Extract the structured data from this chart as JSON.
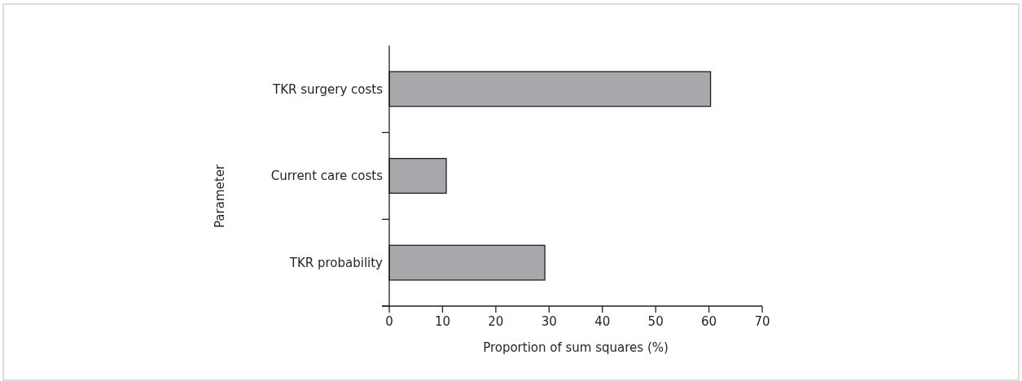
{
  "chart_data": {
    "type": "bar",
    "orientation": "horizontal",
    "xlabel": "Proportion of sum squares (%)",
    "ylabel": "Parameter",
    "categories": [
      "TKR surgery costs",
      "Current care costs",
      "TKR probability"
    ],
    "values": [
      60.3,
      10.7,
      29.2
    ],
    "color": "#a7a8ab",
    "xlim": [
      0,
      70
    ],
    "xticks": [
      0,
      10,
      20,
      30,
      40,
      50,
      60,
      70
    ],
    "grid": false
  }
}
